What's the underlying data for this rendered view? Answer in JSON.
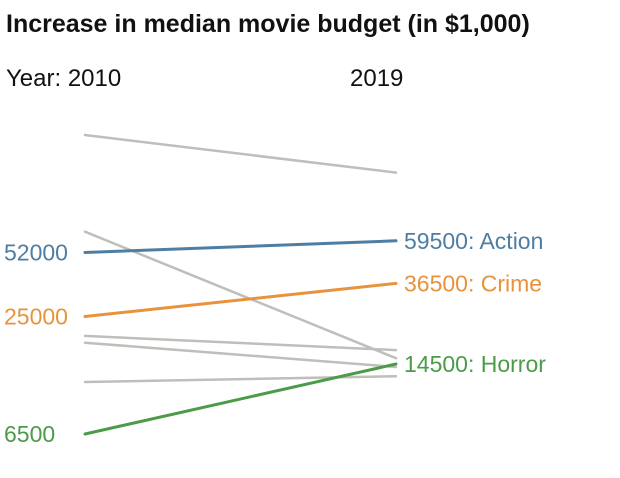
{
  "chart_data": {
    "type": "slope",
    "title": "Increase in median movie budget (in $1,000)",
    "x": [
      "2010",
      "2019"
    ],
    "x_header_left": "Year: 2010",
    "x_header_right": "2019",
    "y_scale": "log",
    "grid": false,
    "legend": "none",
    "series": [
      {
        "name": "Action",
        "values": [
          52000,
          59500
        ],
        "color": "#4e7ea3",
        "highlight": true,
        "left_label": "52000",
        "right_label": "59500: Action"
      },
      {
        "name": "Crime",
        "values": [
          25000,
          36500
        ],
        "color": "#e8923c",
        "highlight": true,
        "left_label": "25000",
        "right_label": "36500: Crime"
      },
      {
        "name": "Horror",
        "values": [
          6500,
          14500
        ],
        "color": "#4b9b48",
        "highlight": true,
        "left_label": "6500",
        "right_label": "14500: Horror"
      },
      {
        "values": [
          200000,
          130000
        ],
        "color": "#bcbfba",
        "highlight": false
      },
      {
        "values": [
          66000,
          15500
        ],
        "color": "#bcbfba",
        "highlight": false
      },
      {
        "values": [
          20000,
          17000
        ],
        "color": "#bcbfba",
        "highlight": false
      },
      {
        "values": [
          18500,
          14000
        ],
        "color": "#bcbfba",
        "highlight": false
      },
      {
        "values": [
          11800,
          12600
        ],
        "color": "#bcbfba",
        "highlight": false
      }
    ]
  }
}
